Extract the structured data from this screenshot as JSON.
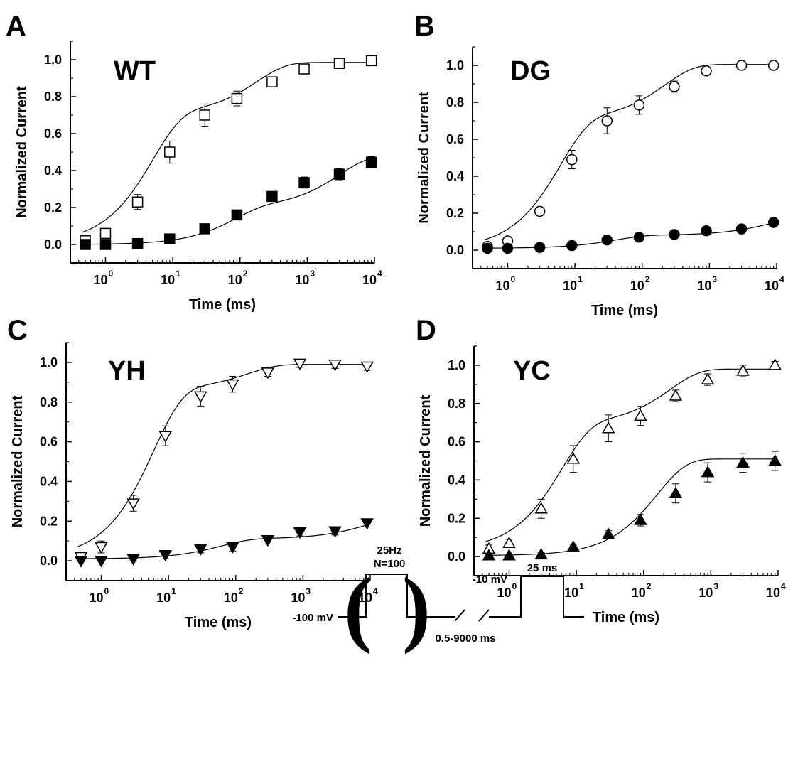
{
  "chart_data": [
    {
      "type": "scatter",
      "panel_label": "A",
      "title": "WT",
      "xlabel": "Time (ms)",
      "ylabel": "Normalized Current",
      "xscale": "log",
      "xlim": [
        0.3,
        10000
      ],
      "ylim": [
        -0.1,
        1.1
      ],
      "yticks": [
        "0.0",
        "0.2",
        "0.4",
        "0.6",
        "0.8",
        "1.0"
      ],
      "xticks": [
        1,
        10,
        100,
        1000,
        10000
      ],
      "xtick_labels": [
        {
          "base": "10",
          "exp": "0"
        },
        {
          "base": "10",
          "exp": "1"
        },
        {
          "base": "10",
          "exp": "2"
        },
        {
          "base": "10",
          "exp": "3"
        },
        {
          "base": "10",
          "exp": "4"
        }
      ],
      "series": [
        {
          "marker": "square-open",
          "x": [
            0.5,
            1,
            3,
            9,
            30,
            90,
            300,
            900,
            3000,
            9000
          ],
          "y": [
            0.02,
            0.06,
            0.23,
            0.5,
            0.7,
            0.79,
            0.88,
            0.95,
            0.98,
            0.995
          ],
          "err": [
            0.02,
            0.02,
            0.04,
            0.06,
            0.06,
            0.04,
            0.02,
            0.02,
            0.02,
            0.02
          ],
          "fit": {
            "c": 0.005,
            "components": [
              {
                "a": 0.7,
                "tau": 5
              },
              {
                "a": 0.28,
                "tau": 180
              }
            ]
          }
        },
        {
          "marker": "square-filled",
          "x": [
            0.5,
            1,
            3,
            9,
            30,
            90,
            300,
            900,
            3000,
            9000
          ],
          "y": [
            0.0,
            0.0,
            0.005,
            0.03,
            0.085,
            0.16,
            0.26,
            0.335,
            0.38,
            0.445
          ],
          "err": [
            0.005,
            0.005,
            0.01,
            0.01,
            0.015,
            0.015,
            0.02,
            0.03,
            0.03,
            0.03
          ],
          "fit": {
            "c": 0.0,
            "components": [
              {
                "a": 0.2,
                "tau": 80
              },
              {
                "a": 0.28,
                "tau": 3000
              }
            ]
          }
        }
      ]
    },
    {
      "type": "scatter",
      "panel_label": "B",
      "title": "DG",
      "xlabel": "Time (ms)",
      "ylabel": "Normalized Current",
      "xscale": "log",
      "xlim": [
        0.3,
        10000
      ],
      "ylim": [
        -0.1,
        1.1
      ],
      "yticks": [
        "0.0",
        "0.2",
        "0.4",
        "0.6",
        "0.8",
        "1.0"
      ],
      "xticks": [
        1,
        10,
        100,
        1000,
        10000
      ],
      "xtick_labels": [
        {
          "base": "10",
          "exp": "0"
        },
        {
          "base": "10",
          "exp": "1"
        },
        {
          "base": "10",
          "exp": "2"
        },
        {
          "base": "10",
          "exp": "3"
        },
        {
          "base": "10",
          "exp": "4"
        }
      ],
      "series": [
        {
          "marker": "circle-open",
          "x": [
            0.5,
            1,
            3,
            9,
            30,
            90,
            300,
            900,
            3000,
            9000
          ],
          "y": [
            0.02,
            0.05,
            0.21,
            0.49,
            0.7,
            0.785,
            0.885,
            0.97,
            1.0,
            1.0
          ],
          "err": [
            0.02,
            0.02,
            0.02,
            0.05,
            0.07,
            0.05,
            0.03,
            0.02,
            0.01,
            0.01
          ],
          "fit": {
            "c": 0.005,
            "components": [
              {
                "a": 0.7,
                "tau": 6
              },
              {
                "a": 0.3,
                "tau": 220
              }
            ]
          }
        },
        {
          "marker": "circle-filled",
          "x": [
            0.5,
            1,
            3,
            9,
            30,
            90,
            300,
            900,
            3000,
            9000
          ],
          "y": [
            0.01,
            0.01,
            0.015,
            0.025,
            0.055,
            0.07,
            0.085,
            0.105,
            0.115,
            0.15
          ],
          "err": [
            0.005,
            0.005,
            0.005,
            0.01,
            0.01,
            0.01,
            0.01,
            0.01,
            0.01,
            0.01
          ],
          "fit": {
            "c": 0.01,
            "components": [
              {
                "a": 0.07,
                "tau": 40
              },
              {
                "a": 0.1,
                "tau": 8000
              }
            ]
          }
        }
      ]
    },
    {
      "type": "scatter",
      "panel_label": "C",
      "title": "YH",
      "xlabel": "Time (ms)",
      "ylabel": "Normalized Current",
      "xscale": "log",
      "xlim": [
        0.3,
        10000
      ],
      "ylim": [
        -0.1,
        1.1
      ],
      "yticks": [
        "0.0",
        "0.2",
        "0.4",
        "0.6",
        "0.8",
        "1.0"
      ],
      "xticks": [
        1,
        10,
        100,
        1000,
        10000
      ],
      "xtick_labels": [
        {
          "base": "10",
          "exp": "0"
        },
        {
          "base": "10",
          "exp": "1"
        },
        {
          "base": "10",
          "exp": "2"
        },
        {
          "base": "10",
          "exp": "3"
        },
        {
          "base": "10",
          "exp": "4"
        }
      ],
      "series": [
        {
          "marker": "triangle-down-open",
          "x": [
            0.5,
            1,
            3,
            9,
            30,
            90,
            300,
            900,
            3000,
            9000
          ],
          "y": [
            0.02,
            0.07,
            0.29,
            0.63,
            0.83,
            0.89,
            0.95,
            0.995,
            0.99,
            0.98
          ],
          "err": [
            0.02,
            0.03,
            0.04,
            0.05,
            0.05,
            0.04,
            0.02,
            0.02,
            0.02,
            0.02
          ],
          "fit": {
            "c": 0.01,
            "components": [
              {
                "a": 0.85,
                "tau": 6
              },
              {
                "a": 0.13,
                "tau": 150
              }
            ]
          }
        },
        {
          "marker": "triangle-down-filled",
          "x": [
            0.5,
            1,
            3,
            9,
            30,
            90,
            300,
            900,
            3000,
            9000
          ],
          "y": [
            0.0,
            0.0,
            0.01,
            0.03,
            0.06,
            0.07,
            0.105,
            0.145,
            0.15,
            0.19
          ],
          "err": [
            0.005,
            0.005,
            0.01,
            0.02,
            0.02,
            0.02,
            0.02,
            0.02,
            0.02,
            0.02
          ],
          "fit": {
            "c": 0.01,
            "components": [
              {
                "a": 0.1,
                "tau": 60
              },
              {
                "a": 0.12,
                "tau": 10000
              }
            ]
          }
        }
      ]
    },
    {
      "type": "scatter",
      "panel_label": "D",
      "title": "YC",
      "xlabel": "Time (ms)",
      "ylabel": "Normalized Current",
      "xscale": "log",
      "xlim": [
        0.3,
        10000
      ],
      "ylim": [
        -0.1,
        1.1
      ],
      "yticks": [
        "0.0",
        "0.2",
        "0.4",
        "0.6",
        "0.8",
        "1.0"
      ],
      "xticks": [
        1,
        10,
        100,
        1000,
        10000
      ],
      "xtick_labels": [
        {
          "base": "10",
          "exp": "0"
        },
        {
          "base": "10",
          "exp": "1"
        },
        {
          "base": "10",
          "exp": "2"
        },
        {
          "base": "10",
          "exp": "3"
        },
        {
          "base": "10",
          "exp": "4"
        }
      ],
      "series": [
        {
          "marker": "triangle-up-open",
          "x": [
            0.5,
            1,
            3,
            9,
            30,
            90,
            300,
            900,
            3000,
            9000
          ],
          "y": [
            0.04,
            0.07,
            0.25,
            0.51,
            0.67,
            0.735,
            0.84,
            0.925,
            0.97,
            1.0
          ],
          "err": [
            0.02,
            0.02,
            0.05,
            0.07,
            0.07,
            0.05,
            0.03,
            0.03,
            0.03,
            0.02
          ],
          "fit": {
            "c": 0.03,
            "components": [
              {
                "a": 0.66,
                "tau": 6
              },
              {
                "a": 0.29,
                "tau": 250
              }
            ]
          }
        },
        {
          "marker": "triangle-up-filled",
          "x": [
            0.5,
            1,
            3,
            9,
            30,
            90,
            300,
            900,
            3000,
            9000
          ],
          "y": [
            0.005,
            0.005,
            0.01,
            0.05,
            0.115,
            0.19,
            0.33,
            0.44,
            0.49,
            0.5
          ],
          "err": [
            0.005,
            0.005,
            0.01,
            0.01,
            0.02,
            0.03,
            0.05,
            0.05,
            0.05,
            0.05
          ],
          "fit": {
            "c": 0.005,
            "components": [
              {
                "a": 0.505,
                "tau": 160
              }
            ]
          }
        }
      ]
    }
  ],
  "protocol": {
    "frequency": "25Hz",
    "count": "N=100",
    "holding": "-100 mV",
    "test_potential": "-10 mV",
    "pulse_duration": "25 ms",
    "interval": "0.5-9000 ms"
  }
}
